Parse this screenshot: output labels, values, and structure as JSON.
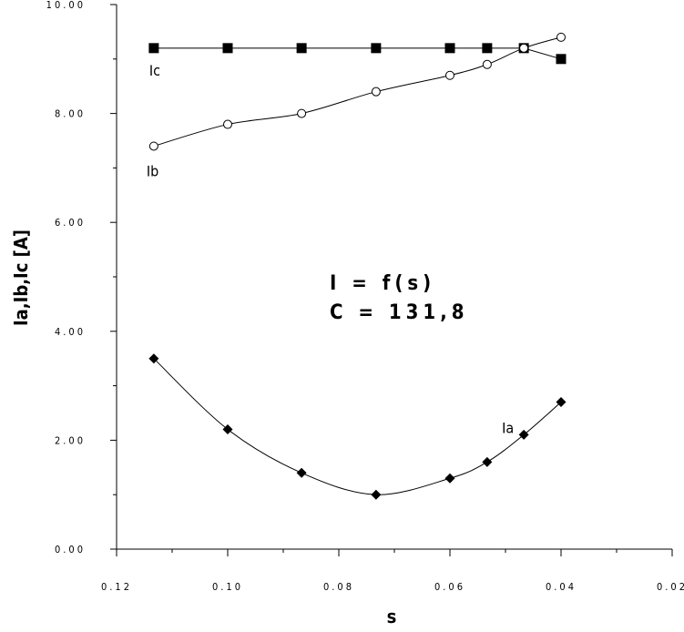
{
  "chart_data": {
    "type": "line",
    "xlabel": "s",
    "ylabel": "Ia,Ib,Ic [A]",
    "xlim": [
      0.12,
      0.02
    ],
    "ylim": [
      0,
      10
    ],
    "x_reversed": true,
    "xticks": [
      "0.12",
      "0.10",
      "0.08",
      "0.06",
      "0.04",
      "0.02"
    ],
    "xtick_values": [
      0.12,
      0.1,
      0.08,
      0.06,
      0.04,
      0.02
    ],
    "yticks": [
      "0.00",
      "2.00",
      "4.00",
      "6.00",
      "8.00",
      "10.00"
    ],
    "ytick_values": [
      0,
      2,
      4,
      6,
      8,
      10
    ],
    "annotations": [
      "I = f(s)",
      "C = 131,8"
    ],
    "series": [
      {
        "name": "Ic",
        "marker": "filled-square",
        "smooth": false,
        "x": [
          0.1133,
          0.1,
          0.0867,
          0.0733,
          0.06,
          0.0533,
          0.0467,
          0.04
        ],
        "y": [
          9.2,
          9.2,
          9.2,
          9.2,
          9.2,
          9.2,
          9.2,
          9.0
        ]
      },
      {
        "name": "Ib",
        "marker": "open-circle",
        "smooth": true,
        "x": [
          0.1133,
          0.1,
          0.0867,
          0.0733,
          0.06,
          0.0533,
          0.0467,
          0.04
        ],
        "y": [
          7.4,
          7.8,
          8.0,
          8.4,
          8.7,
          8.9,
          9.2,
          9.4
        ]
      },
      {
        "name": "Ia",
        "marker": "filled-diamond",
        "smooth": true,
        "x": [
          0.1133,
          0.1,
          0.0867,
          0.0733,
          0.06,
          0.0533,
          0.0467,
          0.04
        ],
        "y": [
          3.5,
          2.2,
          1.4,
          1.0,
          1.3,
          1.6,
          2.1,
          2.7
        ]
      }
    ]
  }
}
